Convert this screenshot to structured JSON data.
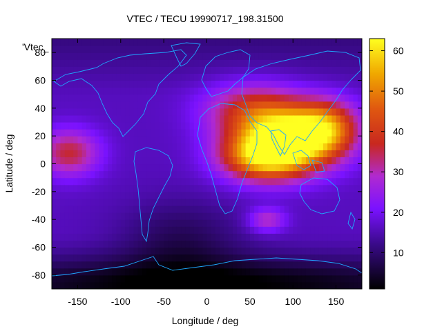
{
  "chart_data": {
    "type": "heatmap",
    "title": "VTEC / TECU 19990717_198.31500",
    "xlabel": "Longitude / deg",
    "ylabel": "Latitude / deg",
    "legend_label": "'Vtec_",
    "xlim": [
      -180,
      180
    ],
    "ylim": [
      -90,
      90
    ],
    "x_ticks": [
      -150,
      -100,
      -50,
      0,
      50,
      100,
      150
    ],
    "y_ticks": [
      -80,
      -60,
      -40,
      -20,
      0,
      20,
      40,
      60,
      80
    ],
    "colorbar": {
      "range": [
        1,
        63
      ],
      "ticks": [
        10,
        20,
        30,
        40,
        50,
        60
      ],
      "palette": "black-purple-red-orange-yellow"
    },
    "features": [
      {
        "kind": "peak",
        "lon": 100,
        "lat": 18,
        "vtec": 62,
        "sigma_lon": 40,
        "sigma_lat": 15
      },
      {
        "kind": "peak",
        "lon": 65,
        "lat": 5,
        "vtec": 50,
        "sigma_lon": 35,
        "sigma_lat": 12
      },
      {
        "kind": "peak",
        "lon": 55,
        "lat": 38,
        "vtec": 38,
        "sigma_lon": 40,
        "sigma_lat": 14
      },
      {
        "kind": "peak",
        "lon": 140,
        "lat": 28,
        "vtec": 38,
        "sigma_lon": 25,
        "sigma_lat": 13
      },
      {
        "kind": "peak",
        "lon": -160,
        "lat": 8,
        "vtec": 36,
        "sigma_lon": 25,
        "sigma_lat": 12
      },
      {
        "kind": "peak",
        "lon": 70,
        "lat": -40,
        "vtec": 30,
        "sigma_lon": 15,
        "sigma_lat": 6
      },
      {
        "kind": "trough",
        "lon": -30,
        "lat": -55,
        "vtec": 8,
        "sigma_lon": 50,
        "sigma_lat": 20
      },
      {
        "kind": "trough",
        "lon": 0,
        "lat": -85,
        "vtec": 5,
        "sigma_lon": 200,
        "sigma_lat": 12
      }
    ],
    "background_vtec": 16,
    "colors": {
      "coastline": "#1fa8ff",
      "axis": "#000000"
    }
  }
}
